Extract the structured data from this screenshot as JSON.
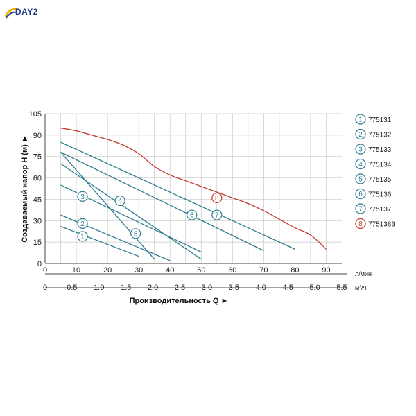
{
  "brand": {
    "logo_text": "DAY2",
    "colors": {
      "accent": "#2b3a8c",
      "swoosh": "#f2b600"
    }
  },
  "chart_data": {
    "type": "line",
    "xlabel": "Производительность Q",
    "ylabel": "Создаваемый напор H (м)",
    "x_unit_primary": "л/мин",
    "x_unit_secondary": "м³/ч",
    "xlim": [
      0,
      95
    ],
    "ylim": [
      0,
      105
    ],
    "x_ticks": [
      0,
      10,
      20,
      30,
      40,
      50,
      60,
      70,
      80,
      90
    ],
    "y_ticks": [
      0,
      15,
      30,
      45,
      60,
      75,
      90,
      105
    ],
    "x2_ticks": [
      "0",
      "0.5",
      "1.0",
      "1.5",
      "2.0",
      "2.5",
      "3.0",
      "3.5",
      "4.0",
      "4.5",
      "5.0",
      "5.5"
    ],
    "x2_values_m3h": [
      0,
      0.5,
      1.0,
      1.5,
      2.0,
      2.5,
      3.0,
      3.5,
      4.0,
      4.5,
      5.0,
      5.5
    ],
    "grid": true,
    "legend_position": "right",
    "series": [
      {
        "id": "1",
        "name": "775131",
        "color": "#2f7c8f",
        "x": [
          5,
          30
        ],
        "y": [
          26,
          5
        ],
        "badge_at": [
          12,
          19
        ]
      },
      {
        "id": "2",
        "name": "775132",
        "color": "#2f7c8f",
        "x": [
          5,
          40
        ],
        "y": [
          34,
          2
        ],
        "badge_at": [
          12,
          28
        ]
      },
      {
        "id": "3",
        "name": "775133",
        "color": "#2f7c8f",
        "x": [
          5,
          50
        ],
        "y": [
          55,
          8
        ],
        "badge_at": [
          12,
          47
        ]
      },
      {
        "id": "4",
        "name": "775134",
        "color": "#2f7c8f",
        "x": [
          5,
          50
        ],
        "y": [
          70,
          3
        ],
        "badge_at": [
          24,
          44
        ]
      },
      {
        "id": "5",
        "name": "775135",
        "color": "#2f7c8f",
        "x": [
          5,
          35
        ],
        "y": [
          78,
          3
        ],
        "badge_at": [
          29,
          21
        ]
      },
      {
        "id": "6",
        "name": "775136",
        "color": "#2f7c8f",
        "x": [
          5,
          70
        ],
        "y": [
          78,
          9
        ],
        "badge_at": [
          47,
          34
        ]
      },
      {
        "id": "7",
        "name": "775137",
        "color": "#2f7c8f",
        "x": [
          5,
          80
        ],
        "y": [
          85,
          10
        ],
        "badge_at": [
          55,
          34
        ]
      },
      {
        "id": "8",
        "name": "7751383",
        "color": "#c0392b",
        "x": [
          5,
          10,
          15,
          20,
          25,
          30,
          35,
          40,
          45,
          50,
          55,
          60,
          65,
          70,
          75,
          80,
          85,
          90
        ],
        "y": [
          95,
          93,
          90,
          87,
          83,
          77,
          68,
          62,
          58,
          54,
          50,
          46,
          42,
          37,
          31,
          25,
          20,
          10
        ],
        "badge_at": [
          55,
          46
        ]
      }
    ]
  }
}
